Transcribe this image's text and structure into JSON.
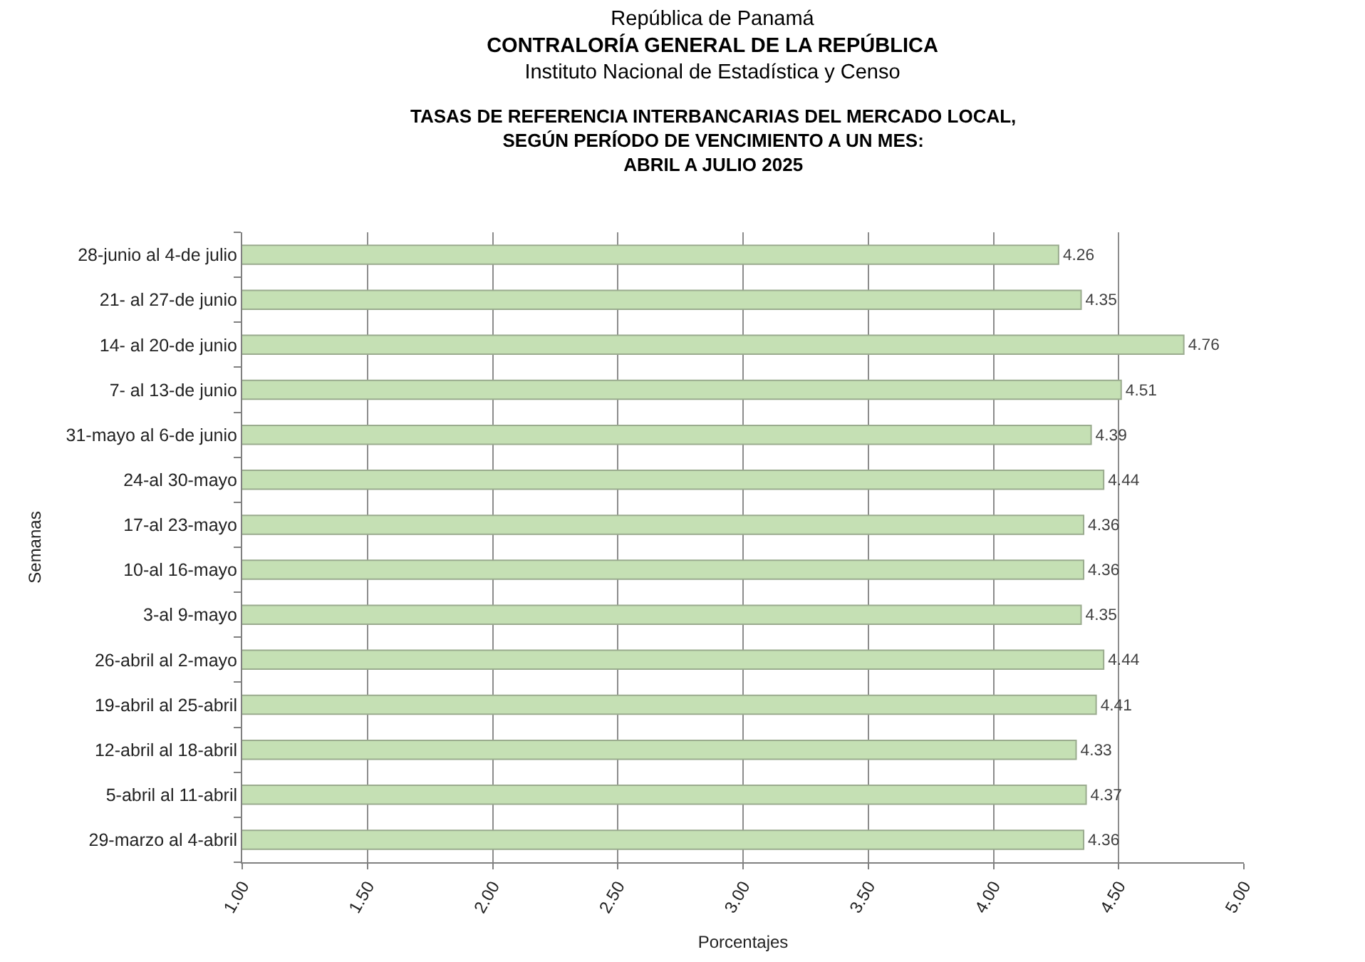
{
  "chart_data": {
    "type": "bar",
    "orientation": "horizontal",
    "title": "República de Panamá\nCONTRALORÍA GENERAL DE LA REPÚBLICA\nInstituto Nacional de Estadística y Censo",
    "subtitle": "TASAS DE REFERENCIA INTERBANCARIAS DEL MERCADO LOCAL,\nSEGÚN PERÍODO DE VENCIMIENTO A UN MES:\nABRIL A JULIO 2025",
    "xlabel": "Porcentajes",
    "ylabel": "Semanas",
    "categories": [
      "28-junio al 4-de julio",
      "21- al 27-de junio",
      "14- al 20-de junio",
      "7- al 13-de junio",
      "31-mayo al 6-de junio",
      "24-al 30-mayo",
      "17-al 23-mayo",
      "10-al 16-mayo",
      "3-al 9-mayo",
      "26-abril al 2-mayo",
      "19-abril al 25-abril",
      "12-abril al 18-abril",
      "5-abril al 11-abril",
      "29-marzo al 4-abril"
    ],
    "values": [
      4.26,
      4.35,
      4.76,
      4.51,
      4.39,
      4.44,
      4.36,
      4.36,
      4.35,
      4.44,
      4.41,
      4.33,
      4.37,
      4.36
    ],
    "color": "#c5e0b4",
    "xlim": [
      1,
      5
    ],
    "xticks": [
      {
        "value": 1,
        "label": "1.00"
      },
      {
        "value": 1.5,
        "label": "1.50"
      },
      {
        "value": 2,
        "label": "2.00"
      },
      {
        "value": 2.5,
        "label": "2.50"
      },
      {
        "value": 3,
        "label": "3.00"
      },
      {
        "value": 3.5,
        "label": "3.50"
      },
      {
        "value": 4,
        "label": "4.00"
      },
      {
        "value": 4.5,
        "label": "4.50"
      },
      {
        "value": 5,
        "label": "5.00"
      }
    ],
    "grid": "x",
    "data_labels": true
  }
}
